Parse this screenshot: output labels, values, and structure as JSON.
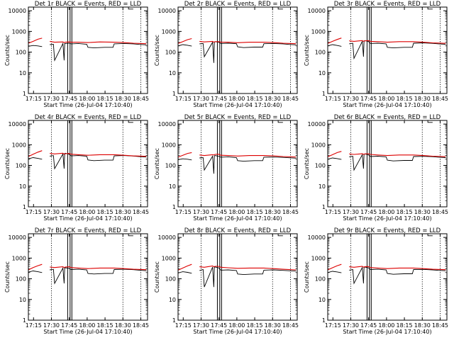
{
  "figure": {
    "panel_titles": [
      "Det 1r  BLACK = Events, RED = LLD",
      "Det 2r  BLACK = Events, RED = LLD",
      "Det 3r  BLACK = Events, RED = LLD",
      "Det 4r  BLACK = Events, RED = LLD",
      "Det 5r  BLACK = Events, RED = LLD",
      "Det 6r  BLACK = Events, RED = LLD",
      "Det 7r  BLACK = Events, RED = LLD",
      "Det 8r  BLACK = Events, RED = LLD",
      "Det 9r  BLACK = Events, RED = LLD"
    ],
    "xlabel": "Start Time (26-Jul-04 17:10:40)",
    "ylabel": "Counts/sec",
    "x_ticks": [
      "17:15",
      "17:30",
      "17:45",
      "18:00",
      "18:15",
      "18:30",
      "18:45"
    ],
    "y_ticks": [
      "1",
      "10",
      "100",
      "1000",
      "10000"
    ]
  },
  "chart_data": {
    "type": "line",
    "layout": "3x3 grid",
    "x_unit": "minutes after 17:10:40",
    "y_scale": "log",
    "ylim": [
      1,
      15000
    ],
    "xlim": [
      0,
      100
    ],
    "vertical_dotted_lines_at": [
      "17:30",
      "18:30",
      "18:45"
    ],
    "series_colors": {
      "Events": "#000000",
      "LLD": "#dd0000"
    },
    "gap": [
      12,
      18
    ],
    "vertical_solid_lines_at_minutes": [
      33,
      35,
      36.5
    ],
    "panels": [
      {
        "name": "Det 1r",
        "series": [
          {
            "name": "Events",
            "x": [
              0,
              4,
              8,
              11.5,
              18,
              21,
              22,
              29,
              30,
              30.5,
              31,
              34,
              36,
              42,
              49,
              50,
              55,
              64,
              71,
              72,
              80,
              88,
              93,
              99
            ],
            "y": [
              190,
              210,
              200,
              185,
              230,
              240,
              40,
              260,
              40,
              260,
              260,
              270,
              250,
              260,
              240,
              170,
              160,
              170,
              170,
              250,
              260,
              250,
              235,
              225
            ]
          },
          {
            "name": "LLD",
            "x": [
              0,
              4,
              8,
              11.5,
              18,
              22,
              29,
              30,
              31,
              34,
              36,
              42,
              50,
              60,
              72,
              80,
              88,
              99
            ],
            "y": [
              270,
              330,
              420,
              470,
              330,
              300,
              310,
              290,
              300,
              310,
              300,
              300,
              290,
              310,
              300,
              290,
              270,
              255
            ]
          }
        ]
      },
      {
        "name": "Det 2r",
        "series": [
          {
            "name": "Events",
            "x": [
              0,
              4,
              8,
              11.5,
              18,
              21,
              22,
              29,
              30,
              30.5,
              31,
              34,
              36,
              42,
              49,
              50,
              55,
              64,
              71,
              72,
              80,
              88,
              93,
              99
            ],
            "y": [
              200,
              230,
              215,
              195,
              250,
              260,
              60,
              300,
              30,
              310,
              320,
              300,
              260,
              270,
              255,
              180,
              165,
              175,
              175,
              255,
              260,
              250,
              235,
              225
            ]
          },
          {
            "name": "LLD",
            "x": [
              0,
              4,
              8,
              11.5,
              18,
              22,
              29,
              30,
              31,
              34,
              36,
              42,
              50,
              60,
              72,
              80,
              88,
              99
            ],
            "y": [
              260,
              320,
              400,
              450,
              330,
              310,
              330,
              300,
              320,
              320,
              305,
              300,
              285,
              300,
              300,
              290,
              270,
              255
            ]
          }
        ]
      },
      {
        "name": "Det 3r",
        "series": [
          {
            "name": "Events",
            "x": [
              0,
              4,
              8,
              11.5,
              18,
              21,
              22,
              29,
              30,
              30.5,
              31,
              34,
              36,
              42,
              49,
              50,
              55,
              64,
              71,
              72,
              80,
              88,
              93,
              99
            ],
            "y": [
              200,
              230,
              210,
              190,
              250,
              270,
              50,
              330,
              60,
              350,
              360,
              330,
              260,
              270,
              250,
              170,
              160,
              170,
              170,
              270,
              280,
              265,
              250,
              240
            ]
          },
          {
            "name": "LLD",
            "x": [
              0,
              4,
              8,
              11.5,
              18,
              22,
              29,
              30,
              31,
              34,
              36,
              42,
              50,
              60,
              72,
              80,
              88,
              99
            ],
            "y": [
              260,
              330,
              410,
              480,
              350,
              330,
              360,
              330,
              350,
              360,
              330,
              320,
              300,
              320,
              320,
              300,
              280,
              265
            ]
          }
        ]
      },
      {
        "name": "Det 4r",
        "series": [
          {
            "name": "Events",
            "x": [
              0,
              4,
              8,
              11.5,
              18,
              21,
              22,
              29,
              30,
              30.5,
              31,
              34,
              36,
              42,
              49,
              50,
              55,
              64,
              71,
              72,
              80,
              88,
              93,
              99
            ],
            "y": [
              210,
              240,
              220,
              200,
              280,
              300,
              70,
              360,
              70,
              380,
              390,
              350,
              290,
              300,
              280,
              185,
              170,
              180,
              180,
              290,
              300,
              285,
              270,
              255
            ]
          },
          {
            "name": "LLD",
            "x": [
              0,
              4,
              8,
              11.5,
              18,
              22,
              29,
              30,
              31,
              34,
              36,
              42,
              50,
              60,
              72,
              80,
              88,
              99
            ],
            "y": [
              270,
              350,
              440,
              520,
              380,
              360,
              390,
              350,
              370,
              380,
              350,
              330,
              310,
              330,
              330,
              310,
              290,
              275
            ]
          }
        ]
      },
      {
        "name": "Det 5r",
        "series": [
          {
            "name": "Events",
            "x": [
              0,
              4,
              8,
              11.5,
              18,
              21,
              22,
              29,
              30,
              30.5,
              31,
              34,
              36,
              42,
              49,
              50,
              55,
              64,
              71,
              72,
              80,
              88,
              93,
              99
            ],
            "y": [
              190,
              210,
              200,
              185,
              230,
              240,
              60,
              280,
              40,
              290,
              300,
              280,
              250,
              260,
              240,
              170,
              160,
              170,
              170,
              250,
              255,
              245,
              235,
              225
            ]
          },
          {
            "name": "LLD",
            "x": [
              0,
              4,
              8,
              11.5,
              18,
              22,
              29,
              30,
              31,
              34,
              36,
              42,
              50,
              60,
              72,
              80,
              88,
              99
            ],
            "y": [
              250,
              310,
              380,
              420,
              320,
              300,
              330,
              320,
              340,
              350,
              310,
              300,
              285,
              300,
              300,
              290,
              270,
              255
            ]
          }
        ]
      },
      {
        "name": "Det 6r",
        "series": [
          {
            "name": "Events",
            "x": [
              0,
              4,
              8,
              11.5,
              18,
              21,
              22,
              29,
              30,
              30.5,
              31,
              34,
              36,
              42,
              49,
              50,
              55,
              64,
              71,
              72,
              80,
              88,
              93,
              99
            ],
            "y": [
              200,
              230,
              215,
              195,
              260,
              280,
              60,
              330,
              70,
              350,
              360,
              330,
              270,
              280,
              260,
              180,
              165,
              175,
              175,
              270,
              275,
              265,
              250,
              240
            ]
          },
          {
            "name": "LLD",
            "x": [
              0,
              4,
              8,
              11.5,
              18,
              22,
              29,
              30,
              31,
              34,
              36,
              42,
              50,
              60,
              72,
              80,
              88,
              99
            ],
            "y": [
              260,
              330,
              420,
              480,
              360,
              340,
              370,
              340,
              360,
              370,
              340,
              320,
              300,
              320,
              320,
              300,
              280,
              265
            ]
          }
        ]
      },
      {
        "name": "Det 7r",
        "series": [
          {
            "name": "Events",
            "x": [
              0,
              4,
              8,
              11.5,
              18,
              21,
              22,
              29,
              30,
              30.5,
              31,
              34,
              36,
              42,
              49,
              50,
              55,
              64,
              71,
              72,
              80,
              88,
              93,
              99
            ],
            "y": [
              210,
              240,
              220,
              200,
              270,
              290,
              60,
              330,
              60,
              340,
              340,
              320,
              280,
              290,
              270,
              180,
              170,
              180,
              180,
              280,
              290,
              275,
              260,
              245
            ]
          },
          {
            "name": "LLD",
            "x": [
              0,
              4,
              8,
              11.5,
              18,
              22,
              29,
              30,
              31,
              34,
              36,
              42,
              50,
              60,
              72,
              80,
              88,
              99
            ],
            "y": [
              270,
              350,
              430,
              500,
              370,
              350,
              380,
              350,
              370,
              380,
              350,
              330,
              310,
              330,
              330,
              310,
              290,
              275
            ]
          }
        ]
      },
      {
        "name": "Det 8r",
        "series": [
          {
            "name": "Events",
            "x": [
              0,
              4,
              8,
              11.5,
              18,
              21,
              22,
              29,
              30,
              30.5,
              31,
              34,
              36,
              42,
              49,
              50,
              55,
              64,
              71,
              72,
              80,
              88,
              93,
              99
            ],
            "y": [
              190,
              220,
              205,
              185,
              250,
              280,
              40,
              370,
              40,
              380,
              370,
              340,
              260,
              270,
              250,
              170,
              160,
              170,
              170,
              260,
              270,
              255,
              245,
              235
            ]
          },
          {
            "name": "LLD",
            "x": [
              0,
              4,
              8,
              11.5,
              18,
              22,
              29,
              30,
              31,
              34,
              36,
              42,
              50,
              60,
              72,
              80,
              88,
              99
            ],
            "y": [
              260,
              330,
              420,
              500,
              380,
              360,
              420,
              380,
              400,
              400,
              360,
              340,
              320,
              330,
              330,
              310,
              290,
              270
            ]
          }
        ]
      },
      {
        "name": "Det 9r",
        "series": [
          {
            "name": "Events",
            "x": [
              0,
              4,
              8,
              11.5,
              18,
              21,
              22,
              29,
              30,
              30.5,
              31,
              34,
              36,
              42,
              49,
              50,
              55,
              64,
              71,
              72,
              80,
              88,
              93,
              99
            ],
            "y": [
              200,
              230,
              215,
              195,
              260,
              280,
              60,
              350,
              60,
              360,
              370,
              340,
              280,
              290,
              270,
              180,
              165,
              175,
              175,
              280,
              285,
              270,
              255,
              245
            ]
          },
          {
            "name": "LLD",
            "x": [
              0,
              4,
              8,
              11.5,
              18,
              22,
              29,
              30,
              31,
              34,
              36,
              42,
              50,
              60,
              72,
              80,
              88,
              99
            ],
            "y": [
              270,
              340,
              430,
              500,
              380,
              360,
              400,
              360,
              380,
              390,
              350,
              330,
              310,
              330,
              330,
              310,
              290,
              275
            ]
          }
        ]
      }
    ]
  }
}
